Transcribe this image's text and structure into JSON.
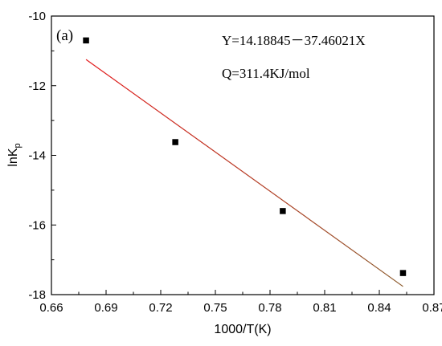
{
  "chart_data": {
    "type": "scatter",
    "panel_label": "(a)",
    "xlabel": "1000/T(K)",
    "ylabel_main": "lnK",
    "ylabel_sub": "p",
    "xlim": [
      0.66,
      0.87
    ],
    "ylim": [
      -18,
      -10
    ],
    "x_ticks": [
      0.66,
      0.69,
      0.72,
      0.75,
      0.78,
      0.81,
      0.84,
      0.87
    ],
    "x_tick_labels": [
      "0.66",
      "0.69",
      "0.72",
      "0.75",
      "0.78",
      "0.81",
      "0.84",
      "0.87"
    ],
    "y_ticks": [
      -10,
      -12,
      -14,
      -16,
      -18
    ],
    "y_tick_labels": [
      "-10",
      "-12",
      "-14",
      "-16",
      "-18"
    ],
    "points": [
      {
        "x": 0.679,
        "y": -10.7
      },
      {
        "x": 0.728,
        "y": -13.62
      },
      {
        "x": 0.787,
        "y": -15.6
      },
      {
        "x": 0.853,
        "y": -17.38
      }
    ],
    "fit_line": {
      "x_range": [
        0.679,
        0.853
      ],
      "intercept": 14.18845,
      "slope": -37.46021,
      "color_start": "#e41a1c",
      "color_end": "#8b5a2b"
    },
    "annotations": [
      "Y=14.18845－37.46021X",
      "Q=311.4KJ/mol"
    ],
    "grid": false
  }
}
